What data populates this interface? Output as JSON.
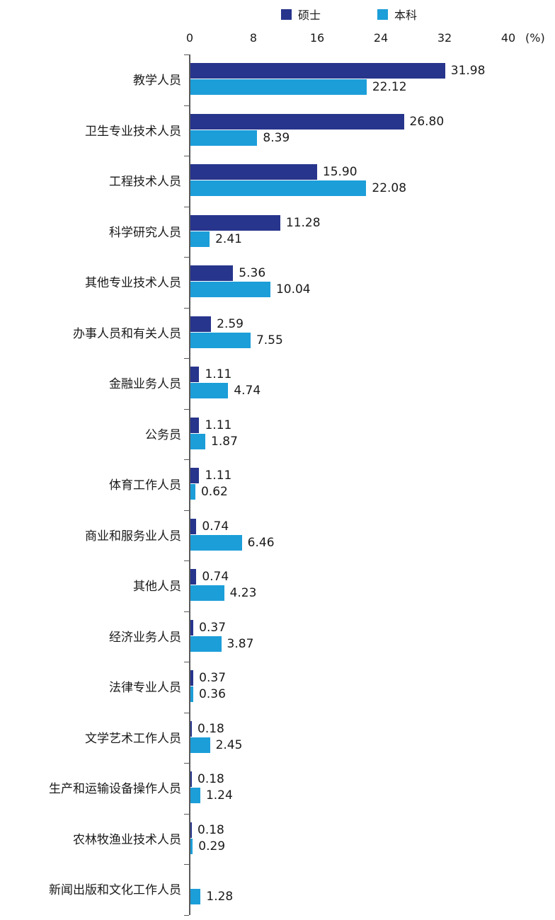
{
  "chart_data": {
    "type": "bar",
    "orientation": "horizontal",
    "title": "",
    "unit_label": "(%)",
    "axis_ticks": [
      0,
      8,
      16,
      24,
      32,
      40
    ],
    "xlim": [
      0,
      40
    ],
    "grid": false,
    "legend_position": "top",
    "categories": [
      "教学人员",
      "卫生专业技术人员",
      "工程技术人员",
      "科学研究人员",
      "其他专业技术人员",
      "办事人员和有关人员",
      "金融业务人员",
      "公务员",
      "体育工作人员",
      "商业和服务业人员",
      "其他人员",
      "经济业务人员",
      "法律专业人员",
      "文学艺术工作人员",
      "生产和运输设备操作人员",
      "农林牧渔业技术人员",
      "新闻出版和文化工作人员"
    ],
    "series": [
      {
        "name": "硕士",
        "color": "#27358c",
        "values": [
          31.98,
          26.8,
          15.9,
          11.28,
          5.36,
          2.59,
          1.11,
          1.11,
          1.11,
          0.74,
          0.74,
          0.37,
          0.37,
          0.18,
          0.18,
          0.18,
          null
        ],
        "labels": [
          "31.98",
          "26.80",
          "15.90",
          "11.28",
          "5.36",
          "2.59",
          "1.11",
          "1.11",
          "1.11",
          "0.74",
          "0.74",
          "0.37",
          "0.37",
          "0.18",
          "0.18",
          "0.18",
          ""
        ]
      },
      {
        "name": "本科",
        "color": "#1c9ed9",
        "values": [
          22.12,
          8.39,
          22.08,
          2.41,
          10.04,
          7.55,
          4.74,
          1.87,
          0.62,
          6.46,
          4.23,
          3.87,
          0.36,
          2.45,
          1.24,
          0.29,
          1.28
        ],
        "labels": [
          "22.12",
          "8.39",
          "22.08",
          "2.41",
          "10.04",
          "7.55",
          "4.74",
          "1.87",
          "0.62",
          "6.46",
          "4.23",
          "3.87",
          "0.36",
          "2.45",
          "1.24",
          "0.29",
          "1.28"
        ]
      }
    ]
  },
  "colors": {
    "axis_line": "#595959",
    "text": "#1a1a1a"
  }
}
